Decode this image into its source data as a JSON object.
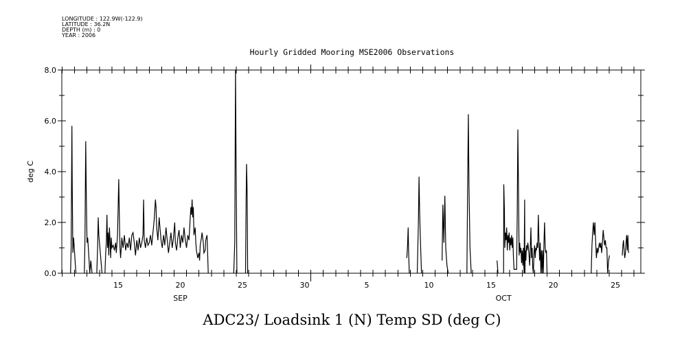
{
  "header": {
    "lines": [
      "LONGITUDE : 122.9W(-122.9)",
      "LATITUDE : 36.2N",
      "DEPTH (m) : 0",
      "YEAR : 2006"
    ]
  },
  "chart_data": {
    "type": "line",
    "title": "Hourly Gridded Mooring MSE2006 Observations",
    "bottom_title": "ADC23/ Loadsink 1 (N) Temp SD (deg C)",
    "ylabel": "deg C",
    "xlabel_months": [
      {
        "label": "SEP",
        "day": 20
      },
      {
        "label": "OCT",
        "day": 46
      }
    ],
    "x_unit": "days since Aug 31 (Sep 15 = 15, Oct 5 = 35)",
    "xlim": [
      10.47,
      57.04
    ],
    "ylim": [
      0,
      8
    ],
    "yticks": [
      {
        "v": 0,
        "label": "0.0"
      },
      {
        "v": 2,
        "label": "2.0"
      },
      {
        "v": 4,
        "label": "4.0"
      },
      {
        "v": 6,
        "label": "6.0"
      },
      {
        "v": 8,
        "label": "8.0"
      }
    ],
    "xticks": [
      {
        "d": 15,
        "label": "15"
      },
      {
        "d": 20,
        "label": "20"
      },
      {
        "d": 25,
        "label": "25"
      },
      {
        "d": 30,
        "label": "30"
      },
      {
        "d": 35,
        "label": "5"
      },
      {
        "d": 40,
        "label": "10"
      },
      {
        "d": 45,
        "label": "15"
      },
      {
        "d": 50,
        "label": "20"
      },
      {
        "d": 55,
        "label": "25"
      }
    ],
    "month_boundary_day": 30.5,
    "grid": false,
    "color": "#000000",
    "segments": [
      [
        [
          11.17,
          0
        ],
        [
          11.22,
          1.0
        ],
        [
          11.28,
          5.8
        ],
        [
          11.31,
          3.4
        ],
        [
          11.36,
          0.8
        ],
        [
          11.42,
          1.4
        ],
        [
          11.5,
          0.8
        ],
        [
          11.6,
          0
        ]
      ],
      [
        [
          12.28,
          0
        ],
        [
          12.33,
          1.3
        ],
        [
          12.39,
          5.2
        ],
        [
          12.44,
          3.0
        ],
        [
          12.5,
          1.2
        ],
        [
          12.55,
          1.4
        ],
        [
          12.65,
          0.6
        ],
        [
          12.72,
          0
        ],
        [
          12.8,
          0.5
        ],
        [
          12.86,
          0.2
        ],
        [
          12.9,
          0
        ]
      ],
      [
        [
          13.28,
          0
        ],
        [
          13.35,
          1.0
        ],
        [
          13.4,
          2.2
        ],
        [
          13.45,
          1.5
        ],
        [
          13.5,
          1.2
        ],
        [
          13.6,
          0.6
        ],
        [
          13.7,
          0
        ]
      ],
      [
        [
          13.94,
          0
        ],
        [
          14.0,
          0.8
        ],
        [
          14.05,
          1.2
        ],
        [
          14.1,
          2.3
        ],
        [
          14.15,
          1.0
        ],
        [
          14.2,
          1.6
        ],
        [
          14.25,
          0.7
        ],
        [
          14.3,
          1.8
        ],
        [
          14.35,
          1.3
        ],
        [
          14.4,
          0.6
        ],
        [
          14.45,
          1.4
        ],
        [
          14.5,
          1.0
        ],
        [
          14.6,
          1.1
        ],
        [
          14.7,
          0.9
        ],
        [
          14.8,
          1.2
        ],
        [
          14.85,
          0.8
        ],
        [
          14.95,
          1.5
        ],
        [
          15.05,
          3.7
        ],
        [
          15.1,
          2.2
        ],
        [
          15.15,
          1.0
        ],
        [
          15.2,
          0.6
        ],
        [
          15.3,
          1.4
        ],
        [
          15.4,
          1.0
        ],
        [
          15.5,
          1.5
        ],
        [
          15.6,
          0.9
        ],
        [
          15.7,
          1.2
        ],
        [
          15.8,
          1.0
        ],
        [
          15.9,
          1.4
        ],
        [
          16.0,
          0.9
        ],
        [
          16.1,
          1.5
        ],
        [
          16.2,
          1.6
        ],
        [
          16.3,
          1.2
        ],
        [
          16.4,
          0.7
        ],
        [
          16.5,
          1.3
        ],
        [
          16.6,
          0.9
        ],
        [
          16.7,
          1.4
        ],
        [
          16.8,
          1.0
        ],
        [
          16.9,
          1.2
        ],
        [
          17.0,
          1.5
        ],
        [
          17.05,
          2.9
        ],
        [
          17.1,
          1.3
        ],
        [
          17.2,
          1.0
        ],
        [
          17.3,
          1.4
        ],
        [
          17.4,
          1.1
        ],
        [
          17.5,
          1.2
        ],
        [
          17.6,
          1.5
        ],
        [
          17.7,
          1.1
        ],
        [
          17.8,
          1.6
        ],
        [
          17.9,
          2.1
        ],
        [
          18.0,
          2.9
        ],
        [
          18.05,
          2.6
        ],
        [
          18.1,
          1.8
        ],
        [
          18.2,
          1.3
        ],
        [
          18.3,
          2.2
        ],
        [
          18.35,
          1.9
        ],
        [
          18.45,
          1.3
        ],
        [
          18.55,
          1.0
        ],
        [
          18.65,
          1.5
        ],
        [
          18.75,
          1.1
        ],
        [
          18.85,
          1.8
        ],
        [
          18.95,
          1.3
        ],
        [
          19.05,
          0.8
        ],
        [
          19.15,
          1.2
        ],
        [
          19.25,
          1.6
        ],
        [
          19.35,
          1.0
        ],
        [
          19.45,
          1.4
        ],
        [
          19.55,
          2.0
        ],
        [
          19.6,
          1.2
        ],
        [
          19.7,
          0.9
        ],
        [
          19.8,
          1.4
        ],
        [
          19.9,
          1.7
        ],
        [
          20.0,
          1.0
        ],
        [
          20.1,
          1.5
        ],
        [
          20.2,
          1.2
        ],
        [
          20.3,
          1.8
        ],
        [
          20.4,
          1.3
        ],
        [
          20.5,
          1.0
        ],
        [
          20.6,
          1.5
        ],
        [
          20.7,
          1.3
        ],
        [
          20.8,
          2.2
        ],
        [
          20.85,
          2.6
        ],
        [
          20.9,
          2.3
        ],
        [
          20.95,
          2.9
        ],
        [
          21.0,
          2.2
        ],
        [
          21.05,
          2.6
        ],
        [
          21.1,
          1.5
        ],
        [
          21.2,
          1.8
        ],
        [
          21.25,
          1.2
        ],
        [
          21.3,
          0.9
        ],
        [
          21.4,
          0.6
        ],
        [
          21.5,
          0.8
        ],
        [
          21.55,
          0.5
        ],
        [
          21.6,
          1.1
        ],
        [
          21.7,
          1.4
        ],
        [
          21.75,
          1.6
        ],
        [
          21.85,
          1.2
        ],
        [
          21.9,
          0.8
        ],
        [
          22.0,
          0.9
        ],
        [
          22.05,
          1.3
        ],
        [
          22.15,
          1.5
        ],
        [
          22.2,
          0.8
        ],
        [
          22.25,
          0
        ]
      ],
      [
        [
          24.3,
          0
        ],
        [
          24.38,
          1.2
        ],
        [
          24.44,
          8.0
        ],
        [
          24.48,
          5.0
        ],
        [
          24.55,
          0
        ]
      ],
      [
        [
          25.25,
          0
        ],
        [
          25.3,
          3.0
        ],
        [
          25.33,
          4.3
        ],
        [
          25.38,
          3.1
        ],
        [
          25.42,
          0
        ]
      ],
      [
        [
          38.22,
          0.6
        ],
        [
          38.28,
          1.1
        ],
        [
          38.33,
          1.8
        ],
        [
          38.36,
          0.9
        ],
        [
          38.42,
          0
        ]
      ],
      [
        [
          39.06,
          0
        ],
        [
          39.15,
          2.0
        ],
        [
          39.2,
          3.8
        ],
        [
          39.25,
          2.4
        ],
        [
          39.3,
          1.5
        ],
        [
          39.4,
          0
        ]
      ],
      [
        [
          41.06,
          0.5
        ],
        [
          41.12,
          2.7
        ],
        [
          41.2,
          1.2
        ],
        [
          41.28,
          3.05
        ],
        [
          41.35,
          1.0
        ],
        [
          41.45,
          0.3
        ],
        [
          41.55,
          0
        ]
      ],
      [
        [
          43.05,
          0
        ],
        [
          43.12,
          3.8
        ],
        [
          43.17,
          6.26
        ],
        [
          43.22,
          3.5
        ],
        [
          43.3,
          1.0
        ],
        [
          43.4,
          0
        ]
      ],
      [
        [
          45.48,
          0.5
        ],
        [
          45.52,
          0.2
        ],
        [
          45.55,
          0
        ]
      ],
      [
        [
          46.0,
          0
        ],
        [
          46.02,
          3.5
        ],
        [
          46.07,
          2.5
        ],
        [
          46.1,
          1.0
        ],
        [
          46.15,
          1.6
        ],
        [
          46.2,
          1.3
        ],
        [
          46.25,
          1.8
        ],
        [
          46.3,
          0.9
        ],
        [
          46.35,
          1.5
        ],
        [
          46.4,
          1.2
        ],
        [
          46.45,
          1.6
        ],
        [
          46.5,
          0.9
        ],
        [
          46.55,
          1.4
        ],
        [
          46.6,
          1.1
        ],
        [
          46.65,
          1.5
        ],
        [
          46.7,
          1.0
        ],
        [
          46.75,
          1.4
        ],
        [
          46.8,
          0.6
        ],
        [
          46.85,
          0.15
        ],
        [
          47.05,
          0.15
        ],
        [
          47.1,
          2.4
        ],
        [
          47.15,
          5.66
        ],
        [
          47.2,
          3.4
        ],
        [
          47.25,
          0.7
        ],
        [
          47.3,
          1.2
        ],
        [
          47.35,
          0.8
        ],
        [
          47.4,
          1.0
        ],
        [
          47.45,
          0.4
        ],
        [
          47.5,
          0.9
        ],
        [
          47.55,
          0.3
        ],
        [
          47.6,
          1.0
        ],
        [
          47.65,
          0
        ],
        [
          47.7,
          2.9
        ],
        [
          47.72,
          0
        ],
        [
          47.75,
          0.9
        ],
        [
          47.8,
          0.5
        ],
        [
          47.85,
          1.1
        ],
        [
          47.9,
          0.9
        ],
        [
          47.95,
          1.2
        ],
        [
          48.0,
          1.0
        ],
        [
          48.05,
          0.7
        ],
        [
          48.1,
          0.3
        ],
        [
          48.15,
          1.0
        ],
        [
          48.2,
          1.8
        ],
        [
          48.25,
          0.6
        ],
        [
          48.3,
          1.0
        ],
        [
          48.35,
          0.2
        ],
        [
          48.4,
          0
        ],
        [
          48.45,
          0.8
        ],
        [
          48.5,
          1.1
        ],
        [
          48.55,
          0.6
        ],
        [
          48.6,
          1.0
        ],
        [
          48.65,
          0.9
        ],
        [
          48.7,
          1.2
        ],
        [
          48.75,
          1.0
        ],
        [
          48.8,
          2.3
        ],
        [
          48.85,
          1.3
        ],
        [
          48.9,
          0.5
        ],
        [
          48.95,
          1.2
        ],
        [
          49.0,
          0
        ],
        [
          49.05,
          0.9
        ],
        [
          49.1,
          0
        ],
        [
          49.15,
          0.9
        ],
        [
          49.2,
          0
        ],
        [
          49.25,
          1.2
        ],
        [
          49.3,
          2.0
        ],
        [
          49.35,
          1.0
        ],
        [
          49.4,
          0.8
        ],
        [
          49.45,
          0.9
        ],
        [
          49.5,
          0
        ]
      ],
      [
        [
          53.05,
          0
        ],
        [
          53.11,
          1.1
        ],
        [
          53.17,
          1.6
        ],
        [
          53.23,
          2.0
        ],
        [
          53.29,
          1.5
        ],
        [
          53.35,
          2.0
        ],
        [
          53.41,
          1.2
        ],
        [
          53.47,
          0.6
        ],
        [
          53.53,
          1.0
        ],
        [
          53.59,
          0.8
        ],
        [
          53.65,
          1.0
        ],
        [
          53.71,
          1.2
        ],
        [
          53.77,
          1.0
        ],
        [
          53.83,
          1.2
        ],
        [
          53.89,
          0.8
        ],
        [
          53.95,
          1.2
        ],
        [
          54.01,
          1.7
        ],
        [
          54.07,
          1.4
        ],
        [
          54.13,
          1.1
        ],
        [
          54.19,
          1.3
        ],
        [
          54.25,
          1.0
        ],
        [
          54.31,
          1.0
        ],
        [
          54.37,
          0
        ],
        [
          54.45,
          0.5
        ],
        [
          54.52,
          0.7
        ]
      ],
      [
        [
          55.55,
          0.7
        ],
        [
          55.6,
          1.1
        ],
        [
          55.65,
          1.3
        ],
        [
          55.7,
          0.9
        ],
        [
          55.75,
          0.6
        ],
        [
          55.8,
          0.8
        ],
        [
          55.85,
          1.2
        ],
        [
          55.9,
          1.5
        ],
        [
          55.95,
          0.9
        ],
        [
          56.0,
          1.5
        ],
        [
          56.05,
          0.8
        ]
      ]
    ]
  }
}
